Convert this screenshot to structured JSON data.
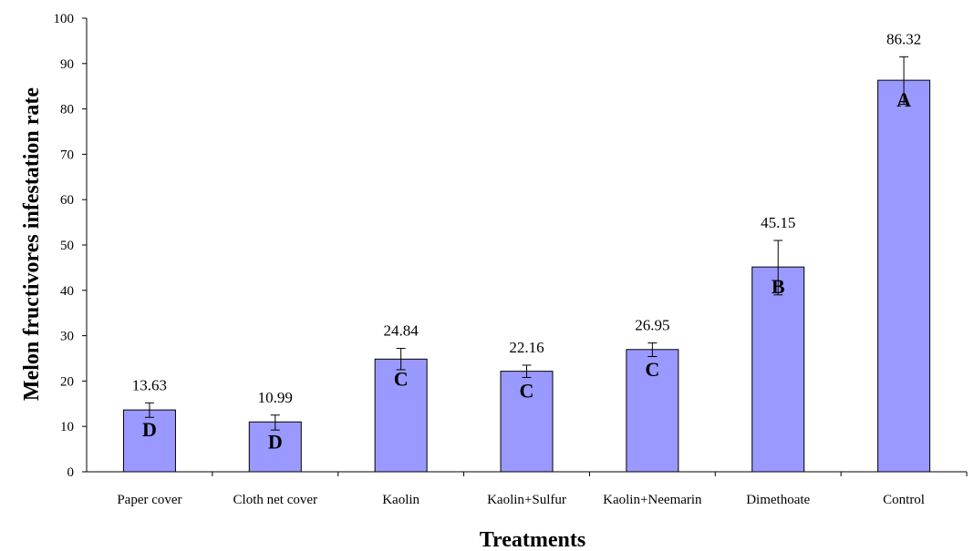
{
  "chart_data": {
    "type": "bar",
    "title": "",
    "xlabel": "Treatments",
    "ylabel": "Melon fructivores infestation rate",
    "ylim": [
      0,
      100
    ],
    "yticks": [
      0,
      10,
      20,
      30,
      40,
      50,
      60,
      70,
      80,
      90,
      100
    ],
    "categories": [
      "Paper cover",
      "Cloth net cover",
      "Kaolin",
      "Kaolin+Sulfur",
      "Kaolin+Neemarin",
      "Dimethoate",
      "Control"
    ],
    "values": [
      13.63,
      10.99,
      24.84,
      22.16,
      26.95,
      45.15,
      86.32
    ],
    "value_labels": [
      "13.63",
      "10.99",
      "24.84",
      "22.16",
      "26.95",
      "45.15",
      "86.32"
    ],
    "error_low": [
      12.0,
      9.2,
      22.5,
      20.8,
      25.4,
      39.0,
      81.0
    ],
    "error_high": [
      15.2,
      12.5,
      27.2,
      23.5,
      28.4,
      51.0,
      91.5
    ],
    "group_letters": [
      "D",
      "D",
      "C",
      "C",
      "C",
      "B",
      "A"
    ],
    "bar_color": "#9999ff",
    "bar_edge_color": "#000000",
    "grid": false,
    "legend": "none"
  }
}
